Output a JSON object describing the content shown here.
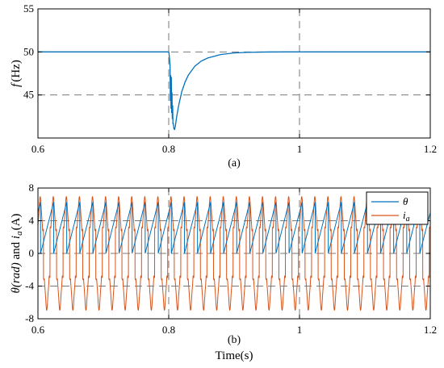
{
  "chart_data": [
    {
      "type": "line",
      "caption": "(a)",
      "xlabel": "",
      "ylabel_italic": "f",
      "ylabel_unit": "(Hz)",
      "xlim": [
        0.6,
        1.2
      ],
      "ylim": [
        40,
        55
      ],
      "xticks": [
        "0.6",
        "0.8",
        "1",
        "1.2"
      ],
      "yticks": [
        "45",
        "50",
        "55"
      ],
      "grid": "dashed",
      "series": [
        {
          "color": "#0072bd",
          "x": [
            0.6,
            0.8,
            0.8005,
            0.802,
            0.8025,
            0.803,
            0.8035,
            0.804,
            0.8045,
            0.805,
            0.8055,
            0.806,
            0.8065,
            0.807,
            0.808,
            0.809,
            0.81,
            0.812,
            0.815,
            0.82,
            0.825,
            0.83,
            0.84,
            0.85,
            0.86,
            0.88,
            0.9,
            0.92,
            0.95,
            0.98,
            1.0,
            1.2
          ],
          "y": [
            50,
            50,
            49.8,
            48.5,
            44.3,
            47.3,
            43.4,
            47.1,
            42.9,
            45.3,
            42.2,
            43.8,
            41.6,
            41.7,
            41.05,
            41.0,
            41.3,
            42.4,
            43.7,
            45.4,
            46.5,
            47.3,
            48.35,
            48.95,
            49.3,
            49.7,
            49.88,
            49.95,
            49.99,
            50.0,
            50.0,
            50.0
          ]
        }
      ]
    },
    {
      "type": "line",
      "caption": "(b)",
      "xlabel": "Time(s)",
      "ylabel": "θ(rad) and ia(A)",
      "xlim": [
        0.6,
        1.2
      ],
      "ylim": [
        -8,
        8
      ],
      "xticks": [
        "0.6",
        "0.8",
        "1",
        "1.2"
      ],
      "yticks": [
        "-8",
        "-4",
        "0",
        "4",
        "8"
      ],
      "grid": "dashed",
      "legend": "top-right",
      "series": [
        {
          "name": "θ",
          "color": "#0072bd",
          "kind": "sawtooth",
          "period": 0.02,
          "min": 0,
          "max": 6.28
        },
        {
          "name": "ia",
          "color": "#d95319",
          "kind": "distorted-sine",
          "frequency": 50,
          "amplitude": 6.6,
          "flat_level": 3.0
        }
      ]
    }
  ],
  "legend": {
    "theta_label": "θ",
    "current_main": "i",
    "current_sub": "a"
  },
  "ylabel_b": {
    "part1": "θ(rad)",
    "and": " and ",
    "i": "i",
    "sub": "a",
    "unit": "(A)"
  }
}
